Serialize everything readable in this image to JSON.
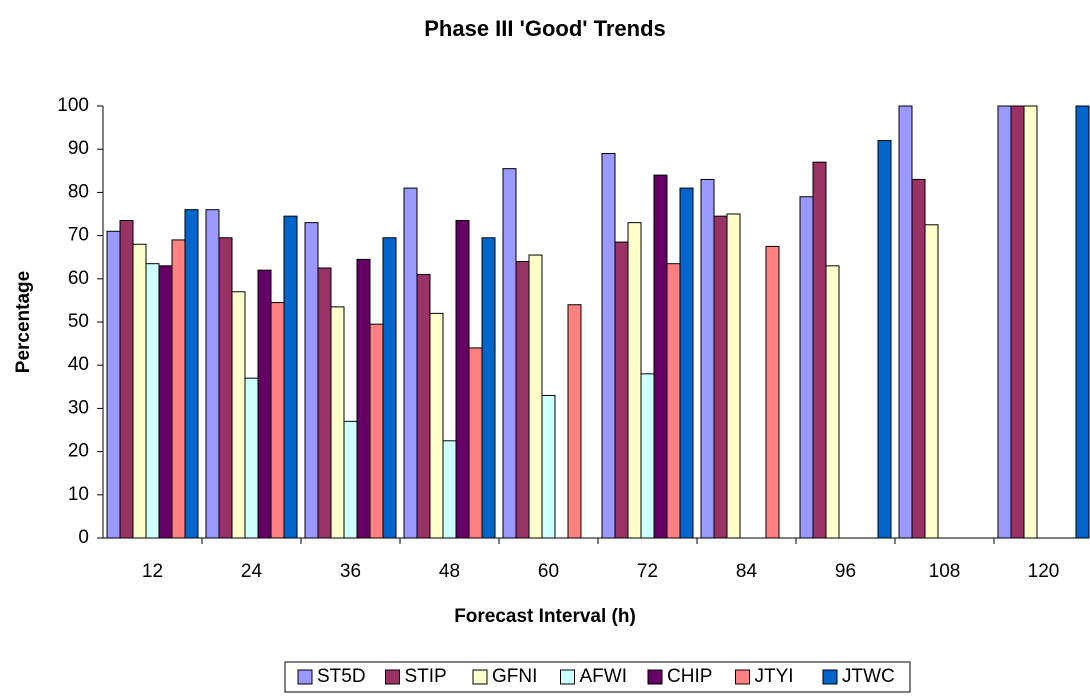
{
  "chart_data": {
    "type": "bar",
    "title": "Phase III 'Good' Trends",
    "x_label": "Forecast Interval (h)",
    "y_label": "Percentage",
    "categories": [
      "12",
      "24",
      "36",
      "48",
      "60",
      "72",
      "84",
      "96",
      "108",
      "120"
    ],
    "series": [
      {
        "name": "ST5D",
        "color": "#9999ff",
        "values": [
          71,
          76,
          73,
          81,
          85.5,
          89,
          83,
          79,
          100,
          100
        ]
      },
      {
        "name": "STIP",
        "color": "#993366",
        "values": [
          73.5,
          69.5,
          62.5,
          61,
          64,
          68.5,
          74.5,
          87,
          83,
          100
        ]
      },
      {
        "name": "GFNI",
        "color": "#ffffcc",
        "values": [
          68,
          57,
          53.5,
          52,
          65.5,
          73,
          75,
          63,
          72.5,
          100
        ]
      },
      {
        "name": "AFWI",
        "color": "#ccffff",
        "values": [
          63.5,
          37,
          27,
          22.5,
          33,
          38,
          null,
          null,
          null,
          null
        ]
      },
      {
        "name": "CHIP",
        "color": "#660066",
        "values": [
          63,
          62,
          64.5,
          73.5,
          null,
          84,
          null,
          null,
          null,
          null
        ]
      },
      {
        "name": "JTYI",
        "color": "#ff8080",
        "values": [
          69,
          54.5,
          49.5,
          44,
          54,
          63.5,
          67.5,
          null,
          null,
          null
        ]
      },
      {
        "name": "JTWC",
        "color": "#0066cc",
        "values": [
          76,
          74.5,
          69.5,
          69.5,
          null,
          81,
          null,
          92,
          null,
          100
        ]
      }
    ],
    "ylim": [
      0,
      100
    ],
    "yticks": [
      0,
      10,
      20,
      30,
      40,
      50,
      60,
      70,
      80,
      90,
      100
    ],
    "grid": false,
    "legend": "bottom"
  }
}
